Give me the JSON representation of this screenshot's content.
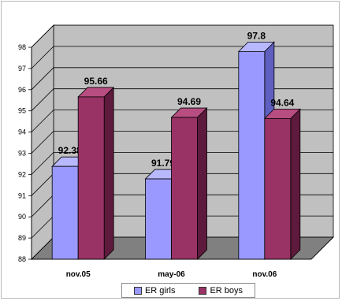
{
  "chart_data": {
    "type": "bar",
    "title": "",
    "xlabel": "",
    "ylabel": "",
    "categories": [
      "nov.05",
      "may-06",
      "nov.06"
    ],
    "series": [
      {
        "name": "ER girls",
        "values": [
          92.38,
          91.79,
          97.8
        ],
        "value_labels": [
          "92.38",
          "91.79",
          "97.8"
        ],
        "color": "#9999ff"
      },
      {
        "name": "ER boys",
        "values": [
          95.66,
          94.69,
          94.64
        ],
        "value_labels": [
          "95.66",
          "94.69",
          "94.64"
        ],
        "color": "#993366"
      }
    ],
    "ylim": [
      88,
      98
    ],
    "yticks": [
      "88",
      "89",
      "90",
      "91",
      "92",
      "93",
      "94",
      "95",
      "96",
      "97",
      "98"
    ],
    "grid": true,
    "three_d": true,
    "legend_position": "bottom",
    "colors": {
      "wall": "#c0c0c0",
      "floor": "#808080",
      "gridline": "#000000",
      "girls_front": "#9999ff",
      "girls_side": "#5f5fc0",
      "girls_top": "#b8b8ff",
      "boys_front": "#993366",
      "boys_side": "#5e1a3c",
      "boys_top": "#b84d82"
    }
  }
}
